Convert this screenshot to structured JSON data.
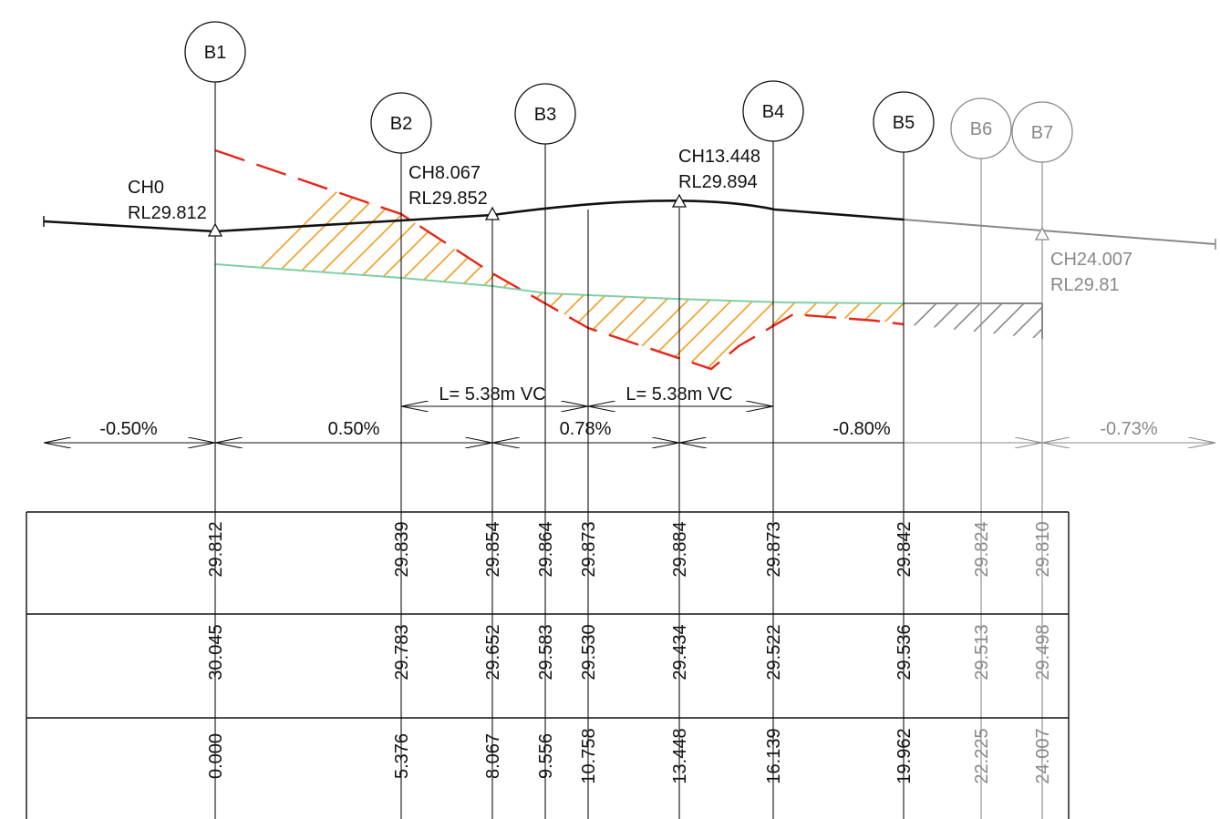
{
  "colors": {
    "black": "#111111",
    "grey": "#888888",
    "orange_hatch": "#f39c1e",
    "red_dashed": "#e8251a",
    "green_line": "#7fcfa6"
  },
  "bubbles": [
    {
      "label": "B1",
      "muted": false
    },
    {
      "label": "B2",
      "muted": false
    },
    {
      "label": "B3",
      "muted": false
    },
    {
      "label": "B4",
      "muted": false
    },
    {
      "label": "B5",
      "muted": false
    },
    {
      "label": "B6",
      "muted": true
    },
    {
      "label": "B7",
      "muted": true
    }
  ],
  "annotations": {
    "ch0": {
      "ch": "CH0",
      "rl": "RL29.812"
    },
    "ch8": {
      "ch": "CH8.067",
      "rl": "RL29.852"
    },
    "ch13": {
      "ch": "CH13.448",
      "rl": "RL29.894"
    },
    "ch24": {
      "ch": "CH24.007",
      "rl": "RL29.81"
    }
  },
  "vertical_curves": [
    {
      "label": "L= 5.38m VC"
    },
    {
      "label": "L= 5.38m VC"
    }
  ],
  "grades": [
    {
      "label": "-0.50%",
      "muted": false
    },
    {
      "label": "0.50%",
      "muted": false
    },
    {
      "label": "0.78%",
      "muted": false
    },
    {
      "label": "-0.80%",
      "muted": false
    },
    {
      "label": "-0.73%",
      "muted": true
    }
  ],
  "table": {
    "columns": [
      {
        "design_rl": "29.812",
        "existing_rl": "30.045",
        "chainage": "0.000",
        "muted": false
      },
      {
        "design_rl": "29.839",
        "existing_rl": "29.783",
        "chainage": "5.376",
        "muted": false
      },
      {
        "design_rl": "29.854",
        "existing_rl": "29.652",
        "chainage": "8.067",
        "muted": false
      },
      {
        "design_rl": "29.864",
        "existing_rl": "29.583",
        "chainage": "9.556",
        "muted": false
      },
      {
        "design_rl": "29.873",
        "existing_rl": "29.530",
        "chainage": "10.758",
        "muted": false
      },
      {
        "design_rl": "29.884",
        "existing_rl": "29.434",
        "chainage": "13.448",
        "muted": false
      },
      {
        "design_rl": "29.873",
        "existing_rl": "29.522",
        "chainage": "16.139",
        "muted": false
      },
      {
        "design_rl": "29.842",
        "existing_rl": "29.536",
        "chainage": "19.962",
        "muted": false
      },
      {
        "design_rl": "29.824",
        "existing_rl": "29.513",
        "chainage": "22.225",
        "muted": true
      },
      {
        "design_rl": "29.810",
        "existing_rl": "29.498",
        "chainage": "24.007",
        "muted": true
      }
    ]
  }
}
